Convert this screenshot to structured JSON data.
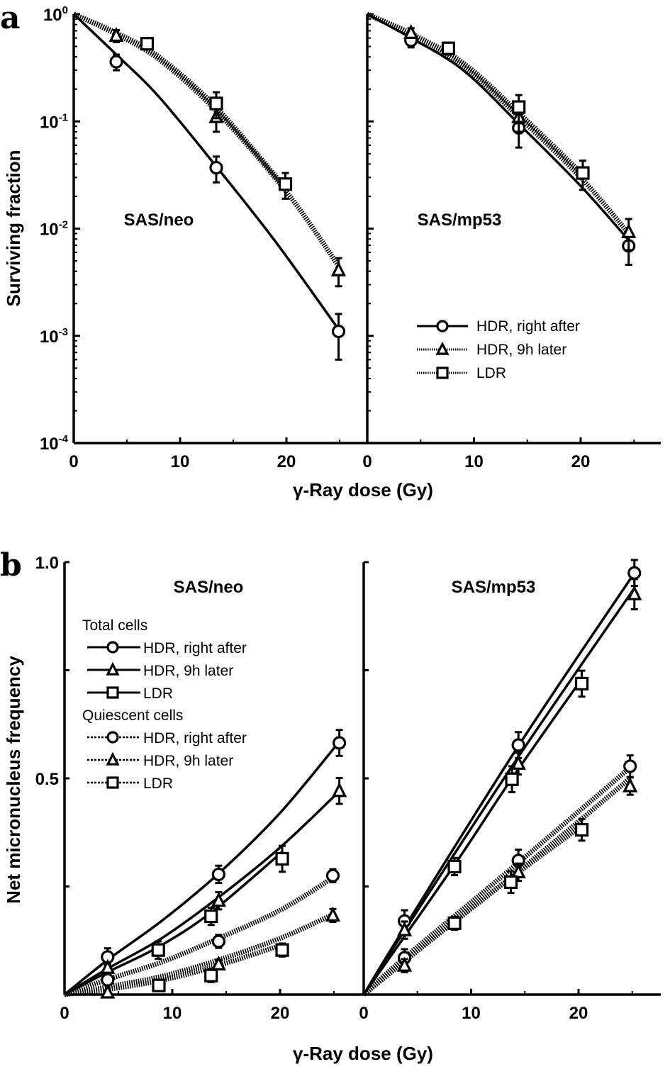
{
  "figure": {
    "panel_a_letter": "a",
    "panel_b_letter": "b",
    "x_axis_title": "γ-Ray dose (Gy)"
  },
  "chart_data": [
    {
      "id": "a-neo",
      "type": "line",
      "scale": "log",
      "title": "SAS/neo",
      "xlabel": "γ-Ray dose (Gy)",
      "ylabel": "Surviving fraction",
      "xlim": [
        0,
        27.5
      ],
      "ylim": [
        0.0001,
        1
      ],
      "xticks": [
        0,
        10,
        20
      ],
      "yticks": [
        {
          "base": "10",
          "exp": "0",
          "value": 1
        },
        {
          "base": "10",
          "exp": "-1",
          "value": 0.1
        },
        {
          "base": "10",
          "exp": "-2",
          "value": 0.01
        },
        {
          "base": "10",
          "exp": "-3",
          "value": 0.001
        },
        {
          "base": "10",
          "exp": "-4",
          "value": 0.0001
        }
      ],
      "series": [
        {
          "name": "HDR, right after",
          "marker": "circle",
          "line": "solid",
          "points": [
            [
              4.0,
              0.36,
              0.06
            ],
            [
              13.4,
              0.037,
              0.01
            ],
            [
              24.9,
              0.0011,
              0.0005
            ]
          ],
          "curve": [
            [
              0,
              1
            ],
            [
              4,
              0.42
            ],
            [
              8,
              0.17
            ],
            [
              13.4,
              0.038
            ],
            [
              19,
              0.0075
            ],
            [
              24.9,
              0.00115
            ]
          ]
        },
        {
          "name": "HDR, 9h later",
          "marker": "triangle",
          "line": "dotted",
          "points": [
            [
              4.0,
              0.63,
              0.08
            ],
            [
              13.4,
              0.11,
              0.03
            ],
            [
              24.9,
              0.0041,
              0.0012
            ]
          ],
          "curve": [
            [
              0,
              1
            ],
            [
              4,
              0.65
            ],
            [
              8,
              0.38
            ],
            [
              13.4,
              0.125
            ],
            [
              20,
              0.022
            ],
            [
              24.9,
              0.0045
            ]
          ]
        },
        {
          "name": "LDR",
          "marker": "square",
          "line": "dotted",
          "points": [
            [
              6.9,
              0.53,
              0.06
            ],
            [
              13.4,
              0.147,
              0.04
            ],
            [
              19.9,
              0.026,
              0.007
            ]
          ],
          "curve": [
            [
              0,
              1
            ],
            [
              4,
              0.67
            ],
            [
              8,
              0.4
            ],
            [
              13.4,
              0.135
            ],
            [
              19.9,
              0.024
            ]
          ]
        }
      ]
    },
    {
      "id": "a-mp53",
      "type": "line",
      "scale": "log",
      "title": "SAS/mp53",
      "xlabel": "γ-Ray dose (Gy)",
      "ylabel": "Surviving fraction",
      "xlim": [
        0,
        27.5
      ],
      "ylim": [
        0.0001,
        1
      ],
      "xticks": [
        0,
        10,
        20
      ],
      "series": [
        {
          "name": "HDR, right after",
          "marker": "circle",
          "line": "solid",
          "points": [
            [
              4.1,
              0.57,
              0.08
            ],
            [
              14.2,
              0.087,
              0.03
            ],
            [
              24.5,
              0.0069,
              0.0023
            ]
          ],
          "curve": [
            [
              0,
              1
            ],
            [
              4.1,
              0.6
            ],
            [
              9,
              0.3
            ],
            [
              14.2,
              0.095
            ],
            [
              20,
              0.025
            ],
            [
              24.5,
              0.0078
            ]
          ]
        },
        {
          "name": "HDR, 9h later",
          "marker": "triangle",
          "line": "dotted",
          "points": [
            [
              4.1,
              0.67,
              0.07
            ],
            [
              14.2,
              0.11,
              0.03
            ],
            [
              24.5,
              0.0093,
              0.003
            ]
          ],
          "curve": [
            [
              0,
              1
            ],
            [
              4.1,
              0.64
            ],
            [
              9,
              0.33
            ],
            [
              14.2,
              0.11
            ],
            [
              20,
              0.03
            ],
            [
              24.5,
              0.009
            ]
          ]
        },
        {
          "name": "LDR",
          "marker": "square",
          "line": "dotted",
          "points": [
            [
              7.6,
              0.48,
              0.06
            ],
            [
              14.2,
              0.136,
              0.04
            ],
            [
              20.2,
              0.033,
              0.01
            ]
          ],
          "curve": [
            [
              0,
              1
            ],
            [
              4.1,
              0.66
            ],
            [
              9,
              0.35
            ],
            [
              14.2,
              0.12
            ],
            [
              20.2,
              0.032
            ]
          ]
        }
      ],
      "legend": {
        "placement": "center-right",
        "entries": [
          {
            "label": "HDR, right after",
            "marker": "circle",
            "line": "solid"
          },
          {
            "label": "HDR, 9h later",
            "marker": "triangle",
            "line": "dotted"
          },
          {
            "label": "LDR",
            "marker": "square",
            "line": "dotted"
          }
        ]
      }
    },
    {
      "id": "b-neo",
      "type": "line",
      "scale": "linear",
      "title": "SAS/neo",
      "xlabel": "γ-Ray dose (Gy)",
      "ylabel": "Net micronucleus frequency",
      "xlim": [
        0,
        27.5
      ],
      "ylim": [
        0,
        1.0
      ],
      "xticks": [
        0,
        10,
        20
      ],
      "yticks": [
        {
          "label": "1.0",
          "value": 1.0
        },
        {
          "label": "0.5",
          "value": 0.5
        }
      ],
      "series": [
        {
          "name": "Total cells – HDR, right after",
          "marker": "circle",
          "line": "solid",
          "points": [
            [
              4.0,
              0.087,
              0.02
            ],
            [
              14.3,
              0.278,
              0.02
            ],
            [
              25.5,
              0.582,
              0.03
            ]
          ],
          "curve": [
            [
              0,
              0
            ],
            [
              4,
              0.08
            ],
            [
              9,
              0.17
            ],
            [
              14.3,
              0.28
            ],
            [
              20,
              0.42
            ],
            [
              25.5,
              0.585
            ]
          ]
        },
        {
          "name": "Total cells – HDR, 9h later",
          "marker": "triangle",
          "line": "solid",
          "points": [
            [
              4.0,
              0.062,
              0.01
            ],
            [
              14.3,
              0.217,
              0.02
            ],
            [
              25.5,
              0.471,
              0.03
            ]
          ],
          "curve": [
            [
              0,
              0
            ],
            [
              4,
              0.06
            ],
            [
              9,
              0.13
            ],
            [
              14.3,
              0.225
            ],
            [
              20,
              0.34
            ],
            [
              25.5,
              0.47
            ]
          ]
        },
        {
          "name": "Total cells – LDR",
          "marker": "square",
          "line": "solid",
          "points": [
            [
              8.7,
              0.103,
              0.02
            ],
            [
              13.6,
              0.181,
              0.02
            ],
            [
              20.2,
              0.314,
              0.03
            ]
          ],
          "curve": [
            [
              0,
              0
            ],
            [
              4,
              0.052
            ],
            [
              8.7,
              0.11
            ],
            [
              13.6,
              0.19
            ],
            [
              20.2,
              0.33
            ]
          ]
        },
        {
          "name": "Quiescent cells – HDR, right after",
          "marker": "circle",
          "line": "dotted",
          "points": [
            [
              4.0,
              0.034,
              0.01
            ],
            [
              14.3,
              0.123,
              0.015
            ],
            [
              24.9,
              0.275,
              0.015
            ]
          ],
          "curve": [
            [
              0,
              0
            ],
            [
              4,
              0.035
            ],
            [
              9,
              0.075
            ],
            [
              14.3,
              0.13
            ],
            [
              20,
              0.195
            ],
            [
              24.9,
              0.27
            ]
          ]
        },
        {
          "name": "Quiescent cells – HDR, 9h later",
          "marker": "triangle",
          "line": "dotted",
          "points": [
            [
              4.0,
              0.005,
              0.005
            ],
            [
              14.3,
              0.07,
              0.01
            ],
            [
              24.9,
              0.183,
              0.015
            ]
          ],
          "curve": [
            [
              0,
              0
            ],
            [
              4,
              0.018
            ],
            [
              9,
              0.042
            ],
            [
              14.3,
              0.08
            ],
            [
              20,
              0.13
            ],
            [
              24.9,
              0.185
            ]
          ]
        },
        {
          "name": "Quiescent cells – LDR",
          "marker": "square",
          "line": "dotted",
          "points": [
            [
              8.75,
              0.021,
              0.01
            ],
            [
              13.6,
              0.044,
              0.015
            ],
            [
              20.2,
              0.103,
              0.015
            ]
          ],
          "curve": [
            [
              0,
              0
            ],
            [
              4,
              0.012
            ],
            [
              8.75,
              0.032
            ],
            [
              13.6,
              0.062
            ],
            [
              20.2,
              0.115
            ]
          ]
        }
      ],
      "legend": {
        "placement": "top-left",
        "groups": [
          {
            "heading": "Total cells",
            "entries": [
              {
                "label": "HDR, right after",
                "marker": "circle",
                "line": "solid"
              },
              {
                "label": "HDR, 9h later",
                "marker": "triangle",
                "line": "solid"
              },
              {
                "label": "LDR",
                "marker": "square",
                "line": "solid"
              }
            ]
          },
          {
            "heading": "Quiescent cells",
            "entries": [
              {
                "label": "HDR, right after",
                "marker": "circle",
                "line": "dashed"
              },
              {
                "label": "HDR, 9h later",
                "marker": "triangle",
                "line": "dashed"
              },
              {
                "label": "LDR",
                "marker": "square",
                "line": "dashed"
              }
            ]
          }
        ]
      }
    },
    {
      "id": "b-mp53",
      "type": "line",
      "scale": "linear",
      "title": "SAS/mp53",
      "xlabel": "γ-Ray dose (Gy)",
      "ylabel": "Net micronucleus frequency",
      "xlim": [
        0,
        27.5
      ],
      "ylim": [
        0,
        1.0
      ],
      "xticks": [
        0,
        10,
        20
      ],
      "series": [
        {
          "name": "Total cells – HDR, right after",
          "marker": "circle",
          "line": "solid",
          "points": [
            [
              3.8,
              0.17,
              0.025
            ],
            [
              14.4,
              0.577,
              0.03
            ],
            [
              25.2,
              0.975,
              0.03
            ]
          ],
          "curve": [
            [
              0,
              0
            ],
            [
              3.8,
              0.155
            ],
            [
              14.4,
              0.575
            ],
            [
              25.2,
              0.975
            ]
          ]
        },
        {
          "name": "Total cells – HDR, 9h later",
          "marker": "triangle",
          "line": "solid",
          "points": [
            [
              3.8,
              0.149,
              0.02
            ],
            [
              14.4,
              0.534,
              0.025
            ],
            [
              25.2,
              0.926,
              0.035
            ]
          ],
          "curve": [
            [
              0,
              0
            ],
            [
              3.8,
              0.148
            ],
            [
              14.4,
              0.55
            ],
            [
              25.2,
              0.94
            ]
          ]
        },
        {
          "name": "Total cells – LDR",
          "marker": "square",
          "line": "solid",
          "points": [
            [
              8.45,
              0.296,
              0.02
            ],
            [
              13.8,
              0.498,
              0.03
            ],
            [
              20.3,
              0.719,
              0.03
            ]
          ],
          "curve": [
            [
              0,
              0
            ],
            [
              8.45,
              0.3
            ],
            [
              13.8,
              0.5
            ],
            [
              20.3,
              0.73
            ]
          ]
        },
        {
          "name": "Quiescent cells – HDR, right after",
          "marker": "circle",
          "line": "dotted",
          "points": [
            [
              3.8,
              0.085,
              0.02
            ],
            [
              14.4,
              0.31,
              0.025
            ],
            [
              24.8,
              0.528,
              0.025
            ]
          ],
          "curve": [
            [
              0,
              0
            ],
            [
              3.8,
              0.085
            ],
            [
              14.4,
              0.305
            ],
            [
              24.8,
              0.525
            ]
          ]
        },
        {
          "name": "Quiescent cells – HDR, 9h later",
          "marker": "triangle",
          "line": "dotted",
          "points": [
            [
              3.8,
              0.067,
              0.015
            ],
            [
              14.4,
              0.283,
              0.02
            ],
            [
              24.8,
              0.482,
              0.02
            ]
          ],
          "curve": [
            [
              0,
              0
            ],
            [
              3.8,
              0.078
            ],
            [
              14.4,
              0.285
            ],
            [
              24.8,
              0.5
            ]
          ]
        },
        {
          "name": "Quiescent cells – LDR",
          "marker": "square",
          "line": "dotted",
          "points": [
            [
              8.45,
              0.165,
              0.015
            ],
            [
              13.7,
              0.26,
              0.025
            ],
            [
              20.3,
              0.381,
              0.025
            ]
          ],
          "curve": [
            [
              0,
              0
            ],
            [
              8.45,
              0.17
            ],
            [
              13.7,
              0.27
            ],
            [
              20.3,
              0.39
            ]
          ]
        }
      ]
    }
  ]
}
